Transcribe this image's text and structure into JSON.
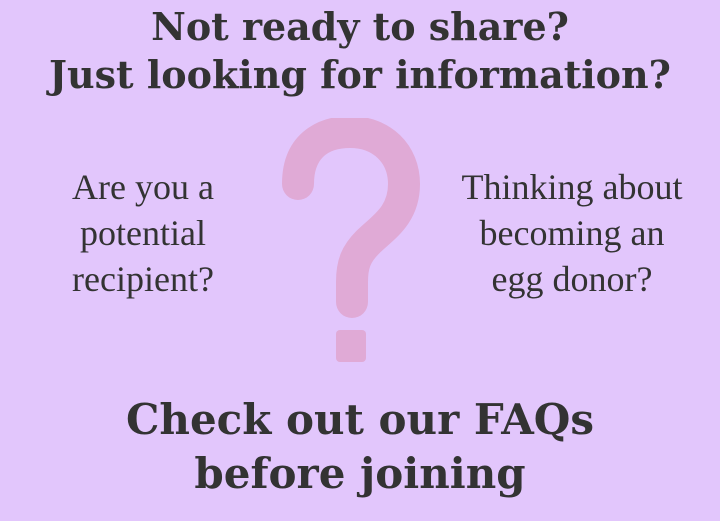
{
  "headline": {
    "line1": "Not ready to share?",
    "line2": "Just looking for information?"
  },
  "left_prompt": {
    "line1": "Are you a",
    "line2": "potential",
    "line3": "recipient?"
  },
  "right_prompt": {
    "line1": "Thinking about",
    "line2": "becoming an",
    "line3": "egg donor?"
  },
  "cta": {
    "line1": "Check out our FAQs",
    "line2": "before joining"
  },
  "colors": {
    "background": "#e2c6fc",
    "text": "#333333",
    "question_mark": "#e0aad6"
  },
  "icons": {
    "center": "question-mark-icon"
  }
}
